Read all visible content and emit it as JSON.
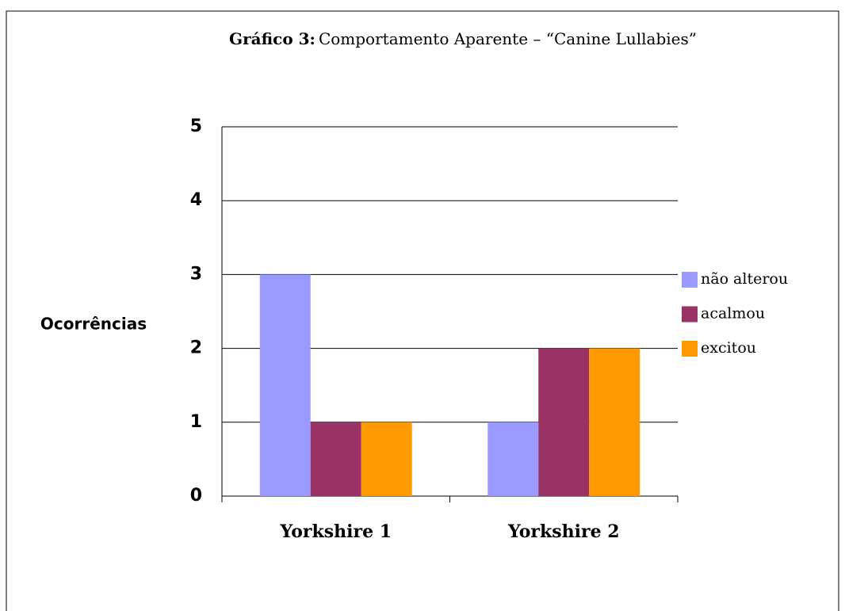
{
  "chart_data": {
    "type": "bar",
    "title_label": "Gráfico 3:",
    "title": "Comportamento Aparente – “Canine  Lullabies”",
    "y_label": "Ocorrências",
    "categories": [
      "Yorkshire 1",
      "Yorkshire 2"
    ],
    "series": [
      {
        "name": "não alterou",
        "color": "#9999ff",
        "values": [
          3,
          1
        ]
      },
      {
        "name": "acalmou",
        "color": "#993366",
        "values": [
          1,
          2
        ]
      },
      {
        "name": "excitou",
        "color": "#ff9900",
        "values": [
          1,
          2
        ]
      }
    ],
    "ylim": [
      0,
      5
    ],
    "yticks": [
      0,
      1,
      2,
      3,
      4,
      5
    ],
    "grid": true,
    "legend": "right"
  }
}
